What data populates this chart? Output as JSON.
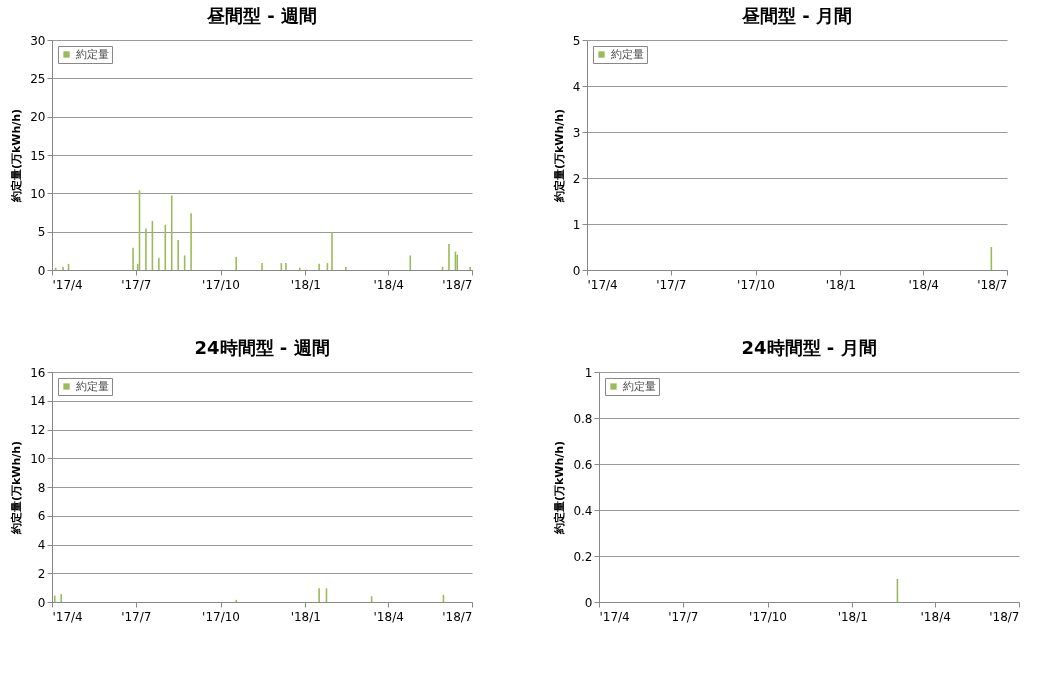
{
  "chart_data": [
    {
      "type": "bar",
      "title": "昼間型 - 週間",
      "ylabel": "約定量(万kWh/h)",
      "legend": "top left",
      "grid": "y",
      "x": [
        "2017-04-05",
        "2017-04-13",
        "2017-04-19",
        "2017-06-28",
        "2017-07-03",
        "2017-07-05",
        "2017-07-12",
        "2017-07-19",
        "2017-07-26",
        "2017-08-02",
        "2017-08-09",
        "2017-08-16",
        "2017-08-23",
        "2017-08-30",
        "2017-10-18",
        "2017-11-15",
        "2017-12-06",
        "2017-12-11",
        "2017-12-26",
        "2018-01-16",
        "2018-01-25",
        "2018-01-30",
        "2018-02-14",
        "2018-04-25",
        "2018-05-30",
        "2018-06-06",
        "2018-06-13",
        "2018-06-15",
        "2018-06-29"
      ],
      "series": [
        {
          "name": "約定量",
          "color": "#9bbb59",
          "values": [
            0.3,
            0.4,
            0.8,
            2.9,
            0.8,
            10.4,
            5.4,
            6.4,
            1.6,
            5.9,
            9.7,
            3.9,
            1.9,
            7.4,
            1.7,
            0.9,
            0.9,
            0.9,
            0.3,
            0.8,
            0.9,
            4.9,
            0.4,
            1.9,
            0.4,
            3.4,
            2.4,
            2.0,
            0.4
          ]
        }
      ],
      "xlim": [
        "2017-04-01",
        "2018-07-01"
      ],
      "xticks": [
        {
          "value": "2017-04-01",
          "label": "'17/4"
        },
        {
          "value": "2017-07-01",
          "label": "'17/7"
        },
        {
          "value": "2017-10-01",
          "label": "'17/10"
        },
        {
          "value": "2018-01-01",
          "label": "'18/1"
        },
        {
          "value": "2018-04-01",
          "label": "'18/4"
        },
        {
          "value": "2018-07-01",
          "label": "'18/7"
        }
      ],
      "ylim": [
        0,
        30
      ],
      "yticks": [
        0,
        5,
        10,
        15,
        20,
        25,
        30
      ]
    },
    {
      "type": "bar",
      "title": "昼間型 - 月間",
      "ylabel": "約定量(万kWh/h)",
      "legend": "top left",
      "grid": "y",
      "x": [
        "2018-06-14"
      ],
      "series": [
        {
          "name": "約定量",
          "color": "#9bbb59",
          "values": [
            0.5
          ]
        }
      ],
      "xlim": [
        "2017-04-01",
        "2018-07-01"
      ],
      "xticks": [
        {
          "value": "2017-04-01",
          "label": "'17/4"
        },
        {
          "value": "2017-07-01",
          "label": "'17/7"
        },
        {
          "value": "2017-10-01",
          "label": "'17/10"
        },
        {
          "value": "2018-01-01",
          "label": "'18/1"
        },
        {
          "value": "2018-04-01",
          "label": "'18/4"
        },
        {
          "value": "2018-07-01",
          "label": "'18/7"
        }
      ],
      "ylim": [
        0,
        5
      ],
      "yticks": [
        0,
        1,
        2,
        3,
        4,
        5
      ]
    },
    {
      "type": "bar",
      "title": "24時間型 - 週間",
      "ylabel": "約定量(万kWh/h)",
      "legend": "top left",
      "grid": "y",
      "x": [
        "2017-04-04",
        "2017-04-11",
        "2017-10-18",
        "2018-01-16",
        "2018-01-24",
        "2018-03-14",
        "2018-05-31"
      ],
      "series": [
        {
          "name": "約定量",
          "color": "#9bbb59",
          "values": [
            0.45,
            0.55,
            0.15,
            0.95,
            0.95,
            0.4,
            0.5
          ]
        }
      ],
      "xlim": [
        "2017-04-01",
        "2018-07-01"
      ],
      "xticks": [
        {
          "value": "2017-04-01",
          "label": "'17/4"
        },
        {
          "value": "2017-07-01",
          "label": "'17/7"
        },
        {
          "value": "2017-10-01",
          "label": "'17/10"
        },
        {
          "value": "2018-01-01",
          "label": "'18/1"
        },
        {
          "value": "2018-04-01",
          "label": "'18/4"
        },
        {
          "value": "2018-07-01",
          "label": "'18/7"
        }
      ],
      "ylim": [
        0,
        16
      ],
      "yticks": [
        0,
        2,
        4,
        6,
        8,
        10,
        12,
        14,
        16
      ]
    },
    {
      "type": "bar",
      "title": "24時間型 - 月間",
      "ylabel": "約定量(万kWh/h)",
      "legend": "top left",
      "grid": "y",
      "x": [
        "2018-02-19"
      ],
      "series": [
        {
          "name": "約定量",
          "color": "#9bbb59",
          "values": [
            0.1
          ]
        }
      ],
      "xlim": [
        "2017-04-01",
        "2018-07-01"
      ],
      "xticks": [
        {
          "value": "2017-04-01",
          "label": "'17/4"
        },
        {
          "value": "2017-07-01",
          "label": "'17/7"
        },
        {
          "value": "2017-10-01",
          "label": "'17/10"
        },
        {
          "value": "2018-01-01",
          "label": "'18/1"
        },
        {
          "value": "2018-04-01",
          "label": "'18/4"
        },
        {
          "value": "2018-07-01",
          "label": "'18/7"
        }
      ],
      "ylim": [
        0,
        1
      ],
      "yticks": [
        0,
        0.2,
        0.4,
        0.6,
        0.8,
        1
      ]
    }
  ]
}
